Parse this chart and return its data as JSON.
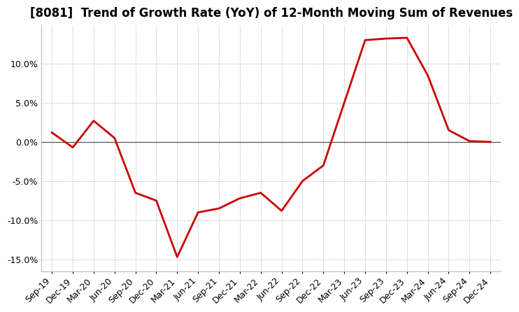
{
  "title": "[8081]  Trend of Growth Rate (YoY) of 12-Month Moving Sum of Revenues",
  "x_labels": [
    "Sep-19",
    "Dec-19",
    "Mar-20",
    "Jun-20",
    "Sep-20",
    "Dec-20",
    "Mar-21",
    "Jun-21",
    "Sep-21",
    "Dec-21",
    "Mar-22",
    "Jun-22",
    "Sep-22",
    "Dec-22",
    "Mar-23",
    "Jun-23",
    "Sep-23",
    "Dec-23",
    "Mar-24",
    "Jun-24",
    "Sep-24",
    "Dec-24"
  ],
  "y_values": [
    1.2,
    -0.7,
    2.7,
    0.5,
    -6.5,
    -7.5,
    -14.7,
    -9.0,
    -8.5,
    -7.2,
    -6.5,
    -8.8,
    -5.0,
    -3.0,
    5.0,
    13.0,
    13.2,
    13.3,
    8.5,
    1.5,
    0.1,
    0.0
  ],
  "line_color": "#cc0000",
  "line_width": 2.0,
  "ylim": [
    -16.5,
    15.0
  ],
  "yticks": [
    -15,
    -10,
    -5,
    0,
    5,
    10
  ],
  "grid_color": "#aaaaaa",
  "zero_line_color": "#555555",
  "background_color": "#ffffff",
  "title_fontsize": 12,
  "tick_fontsize": 9
}
